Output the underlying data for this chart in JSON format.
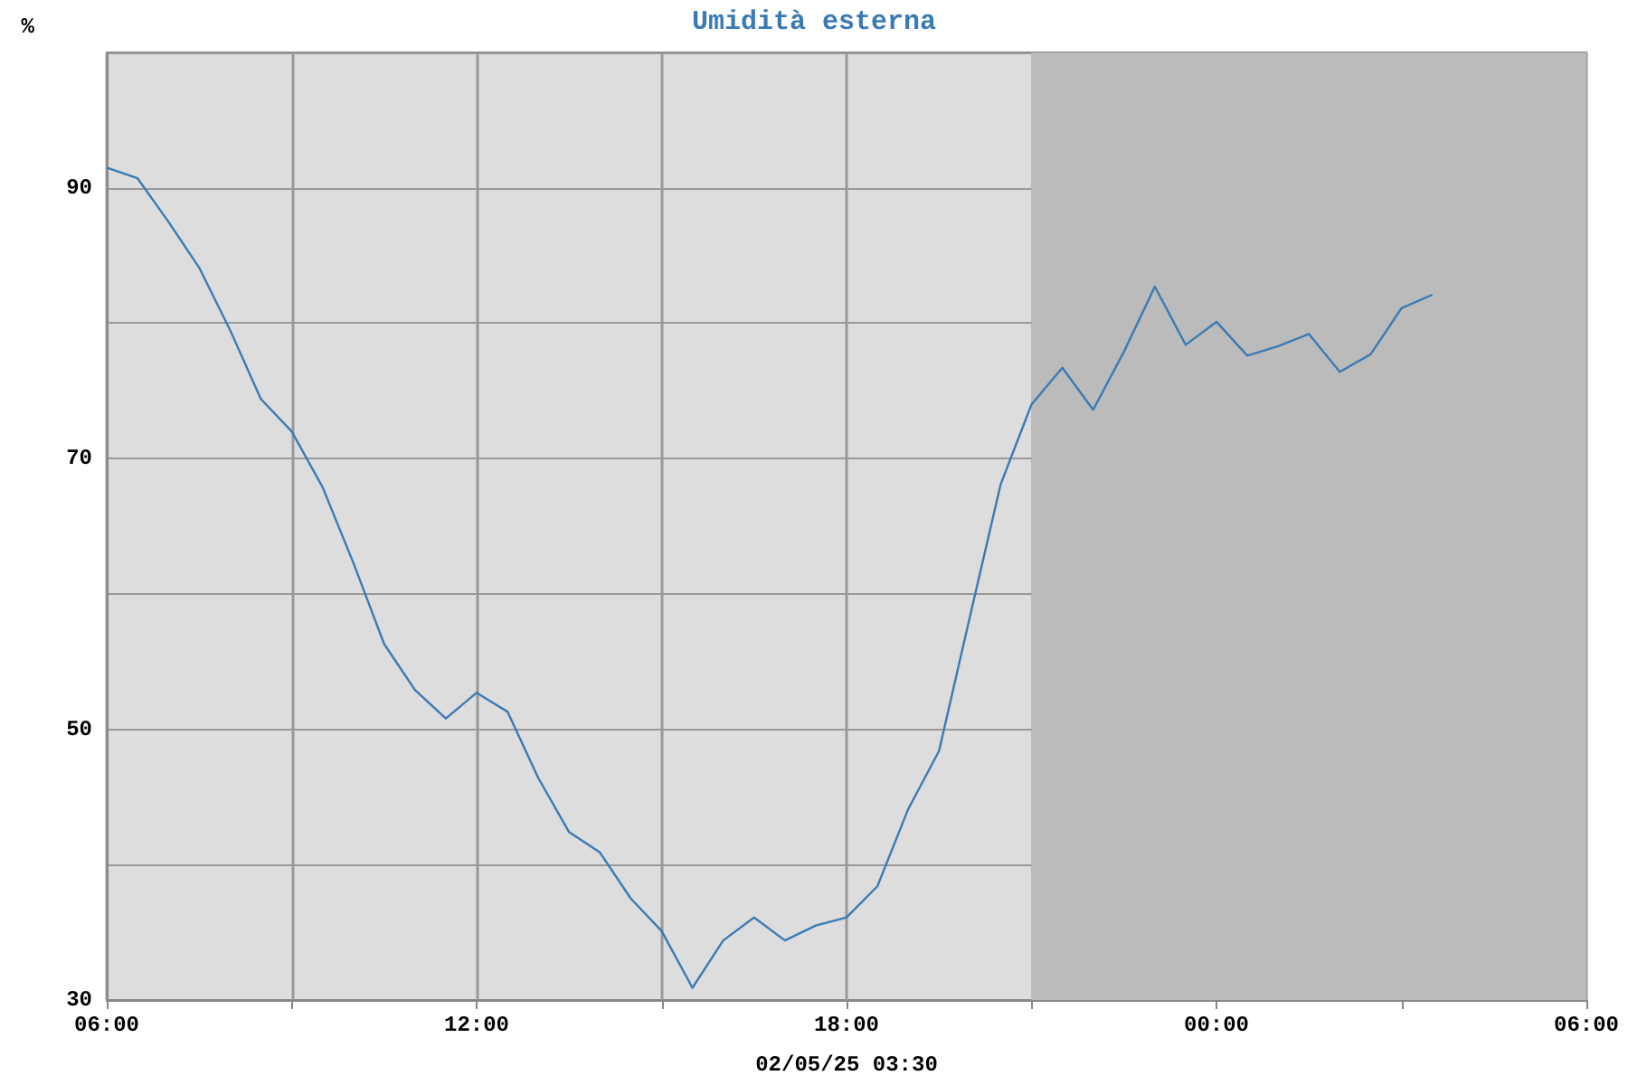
{
  "chart_data": {
    "type": "line",
    "title": "Umidità esterna",
    "xlabel": "02/05/25 03:30",
    "ylabel": "%",
    "x": [
      "--05-01T06:00",
      "--05-01T06:30",
      "--05-01T07:00",
      "--05-01T07:30",
      "--05-01T08:00",
      "--05-01T08:30",
      "--05-01T09:00",
      "--05-01T09:30",
      "--05-01T10:00",
      "--05-01T10:30",
      "--05-01T11:00",
      "--05-01T11:30",
      "--05-01T12:00",
      "--05-01T12:30",
      "--05-01T13:00",
      "--05-01T13:30",
      "--05-01T14:00",
      "--05-01T14:30",
      "--05-01T15:00",
      "--05-01T15:30",
      "--05-01T16:00",
      "--05-01T16:30",
      "--05-01T17:00",
      "--05-01T17:30",
      "--05-01T18:00",
      "--05-01T18:30",
      "--05-01T19:00",
      "--05-01T19:30",
      "--05-01T20:00",
      "--05-01T20:30",
      "--05-01T21:00",
      "--05-01T21:30",
      "--05-01T22:00",
      "--05-01T22:30",
      "--05-01T23:00",
      "--05-01T23:30",
      "--05-02T00:00",
      "--05-02T00:30",
      "--05-02T01:00",
      "--05-02T01:30",
      "--05-02T02:00",
      "--05-02T02:30",
      "--05-02T03:00",
      "--05-02T03:30"
    ],
    "series": [
      {
        "color": "#3a7bb5",
        "values": [
          91.5,
          90.7,
          87.5,
          84.1,
          79.5,
          74.4,
          72,
          67.9,
          62.3,
          56.3,
          52.9,
          50.8,
          52.7,
          51.3,
          46.4,
          42.4,
          40.9,
          37.5,
          35.1,
          30.9,
          34.4,
          36.1,
          34.4,
          35.5,
          36.1,
          38.4,
          44.1,
          48.4,
          58.3,
          68.1,
          74,
          76.7,
          73.6,
          77.9,
          82.7,
          78.4,
          80.1,
          77.6,
          78.3,
          79.2,
          76.4,
          77.7,
          81.1,
          82.1
        ]
      }
    ],
    "xlim": [
      "--05-01T06:00",
      "--05-02T06:00"
    ],
    "xticks": [
      {
        "value": "--05-01T06:00",
        "label": "06:00"
      },
      {
        "value": "--05-01T09:00",
        "label": null
      },
      {
        "value": "--05-01T12:00",
        "label": "12:00"
      },
      {
        "value": "--05-01T15:00",
        "label": null
      },
      {
        "value": "--05-01T18:00",
        "label": "18:00"
      },
      {
        "value": "--05-01T21:00",
        "label": null
      },
      {
        "value": "--05-02T00:00",
        "label": "00:00"
      },
      {
        "value": "--05-02T03:00",
        "label": null
      },
      {
        "value": "--05-02T06:00",
        "label": "06:00"
      }
    ],
    "ylim": [
      30,
      100
    ],
    "yticks": [
      30,
      {
        "value": 40,
        "label": null
      },
      50,
      {
        "value": 60,
        "label": null
      },
      70,
      {
        "value": 80,
        "label": null
      },
      90,
      {
        "value": 100,
        "label": null
      }
    ],
    "bands": [
      {
        "axis": "x",
        "from": "--05-01T21:00",
        "to": "--05-02T06:00",
        "color": "#bbbbbb"
      }
    ],
    "grid": true,
    "marker": "none",
    "line_style": "solid"
  }
}
